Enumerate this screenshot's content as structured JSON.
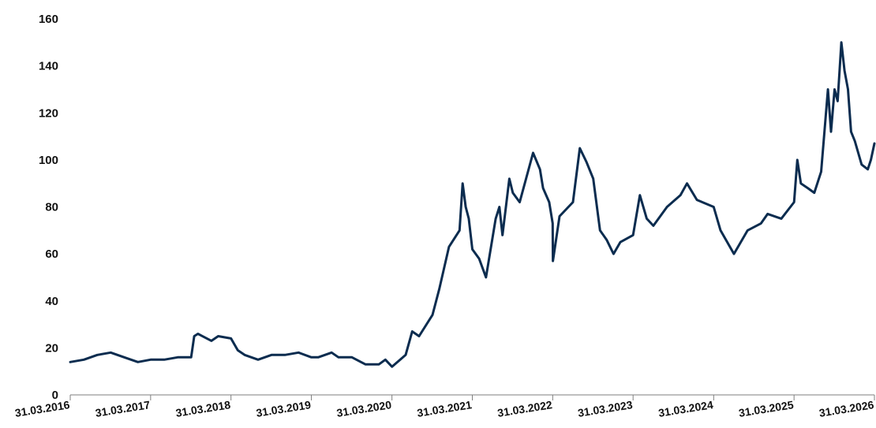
{
  "chart_data": {
    "type": "line",
    "title": "",
    "xlabel": "",
    "ylabel": "",
    "ylim": [
      0,
      160
    ],
    "yticks": [
      0,
      20,
      40,
      60,
      80,
      100,
      120,
      140,
      160
    ],
    "xlim": [
      "31.03.2016",
      "31.03.2026"
    ],
    "xticks": [
      "31.03.2016",
      "31.03.2017",
      "31.03.2018",
      "31.03.2019",
      "31.03.2020",
      "31.03.2021",
      "31.03.2022",
      "31.03.2023",
      "31.03.2024",
      "31.03.2025",
      "31.03.2026"
    ],
    "grid": false,
    "legend": "none",
    "line_color": "#0b2c4f",
    "series": [
      {
        "points": [
          [
            "31.03.2016",
            14
          ],
          [
            "01.06.2016",
            15
          ],
          [
            "01.08.2016",
            17
          ],
          [
            "01.10.2016",
            18
          ],
          [
            "01.12.2016",
            16
          ],
          [
            "01.02.2017",
            14
          ],
          [
            "31.03.2017",
            15
          ],
          [
            "01.06.2017",
            15
          ],
          [
            "01.08.2017",
            16
          ],
          [
            "01.09.2017",
            16
          ],
          [
            "01.10.2017",
            16
          ],
          [
            "15.10.2017",
            25
          ],
          [
            "01.11.2017",
            26
          ],
          [
            "01.01.2018",
            23
          ],
          [
            "01.02.2018",
            25
          ],
          [
            "31.03.2018",
            24
          ],
          [
            "01.05.2018",
            19
          ],
          [
            "01.06.2018",
            17
          ],
          [
            "01.08.2018",
            15
          ],
          [
            "01.10.2018",
            17
          ],
          [
            "01.12.2018",
            17
          ],
          [
            "01.02.2019",
            18
          ],
          [
            "31.03.2019",
            16
          ],
          [
            "01.05.2019",
            16
          ],
          [
            "01.07.2019",
            18
          ],
          [
            "01.08.2019",
            16
          ],
          [
            "01.10.2019",
            16
          ],
          [
            "01.12.2019",
            13
          ],
          [
            "01.02.2020",
            13
          ],
          [
            "01.03.2020",
            15
          ],
          [
            "31.03.2020",
            12
          ],
          [
            "01.06.2020",
            17
          ],
          [
            "01.07.2020",
            27
          ],
          [
            "01.08.2020",
            25
          ],
          [
            "01.10.2020",
            34
          ],
          [
            "01.11.2020",
            45
          ],
          [
            "15.12.2020",
            63
          ],
          [
            "01.02.2021",
            70
          ],
          [
            "15.02.2021",
            90
          ],
          [
            "01.03.2021",
            80
          ],
          [
            "15.03.2021",
            75
          ],
          [
            "31.03.2021",
            62
          ],
          [
            "01.05.2021",
            58
          ],
          [
            "01.06.2021",
            50
          ],
          [
            "15.07.2021",
            75
          ],
          [
            "01.08.2021",
            80
          ],
          [
            "15.08.2021",
            68
          ],
          [
            "15.09.2021",
            92
          ],
          [
            "01.10.2021",
            86
          ],
          [
            "01.11.2021",
            82
          ],
          [
            "01.01.2022",
            103
          ],
          [
            "01.02.2022",
            96
          ],
          [
            "15.02.2022",
            88
          ],
          [
            "15.03.2022",
            82
          ],
          [
            "31.03.2022",
            73
          ],
          [
            "01.04.2022",
            57
          ],
          [
            "01.05.2022",
            76
          ],
          [
            "01.07.2022",
            82
          ],
          [
            "01.08.2022",
            105
          ],
          [
            "01.09.2022",
            99
          ],
          [
            "01.10.2022",
            92
          ],
          [
            "01.11.2022",
            70
          ],
          [
            "01.12.2022",
            66
          ],
          [
            "01.01.2023",
            60
          ],
          [
            "01.02.2023",
            65
          ],
          [
            "31.03.2023",
            68
          ],
          [
            "01.05.2023",
            85
          ],
          [
            "01.06.2023",
            75
          ],
          [
            "01.07.2023",
            72
          ],
          [
            "01.09.2023",
            80
          ],
          [
            "01.11.2023",
            85
          ],
          [
            "01.12.2023",
            90
          ],
          [
            "15.01.2024",
            83
          ],
          [
            "31.03.2024",
            80
          ],
          [
            "01.05.2024",
            70
          ],
          [
            "01.07.2024",
            60
          ],
          [
            "01.09.2024",
            70
          ],
          [
            "01.11.2024",
            73
          ],
          [
            "01.12.2024",
            77
          ],
          [
            "01.02.2025",
            75
          ],
          [
            "31.03.2025",
            82
          ],
          [
            "15.04.2025",
            100
          ],
          [
            "01.05.2025",
            90
          ],
          [
            "01.06.2025",
            88
          ],
          [
            "01.07.2025",
            86
          ],
          [
            "01.08.2025",
            95
          ],
          [
            "01.09.2025",
            130
          ],
          [
            "15.09.2025",
            112
          ],
          [
            "01.10.2025",
            130
          ],
          [
            "15.10.2025",
            125
          ],
          [
            "01.11.2025",
            150
          ],
          [
            "15.11.2025",
            138
          ],
          [
            "01.12.2025",
            130
          ],
          [
            "15.12.2025",
            112
          ],
          [
            "01.01.2026",
            108
          ],
          [
            "01.02.2026",
            98
          ],
          [
            "01.03.2026",
            96
          ],
          [
            "15.03.2026",
            100
          ],
          [
            "31.03.2026",
            107
          ]
        ]
      }
    ]
  }
}
